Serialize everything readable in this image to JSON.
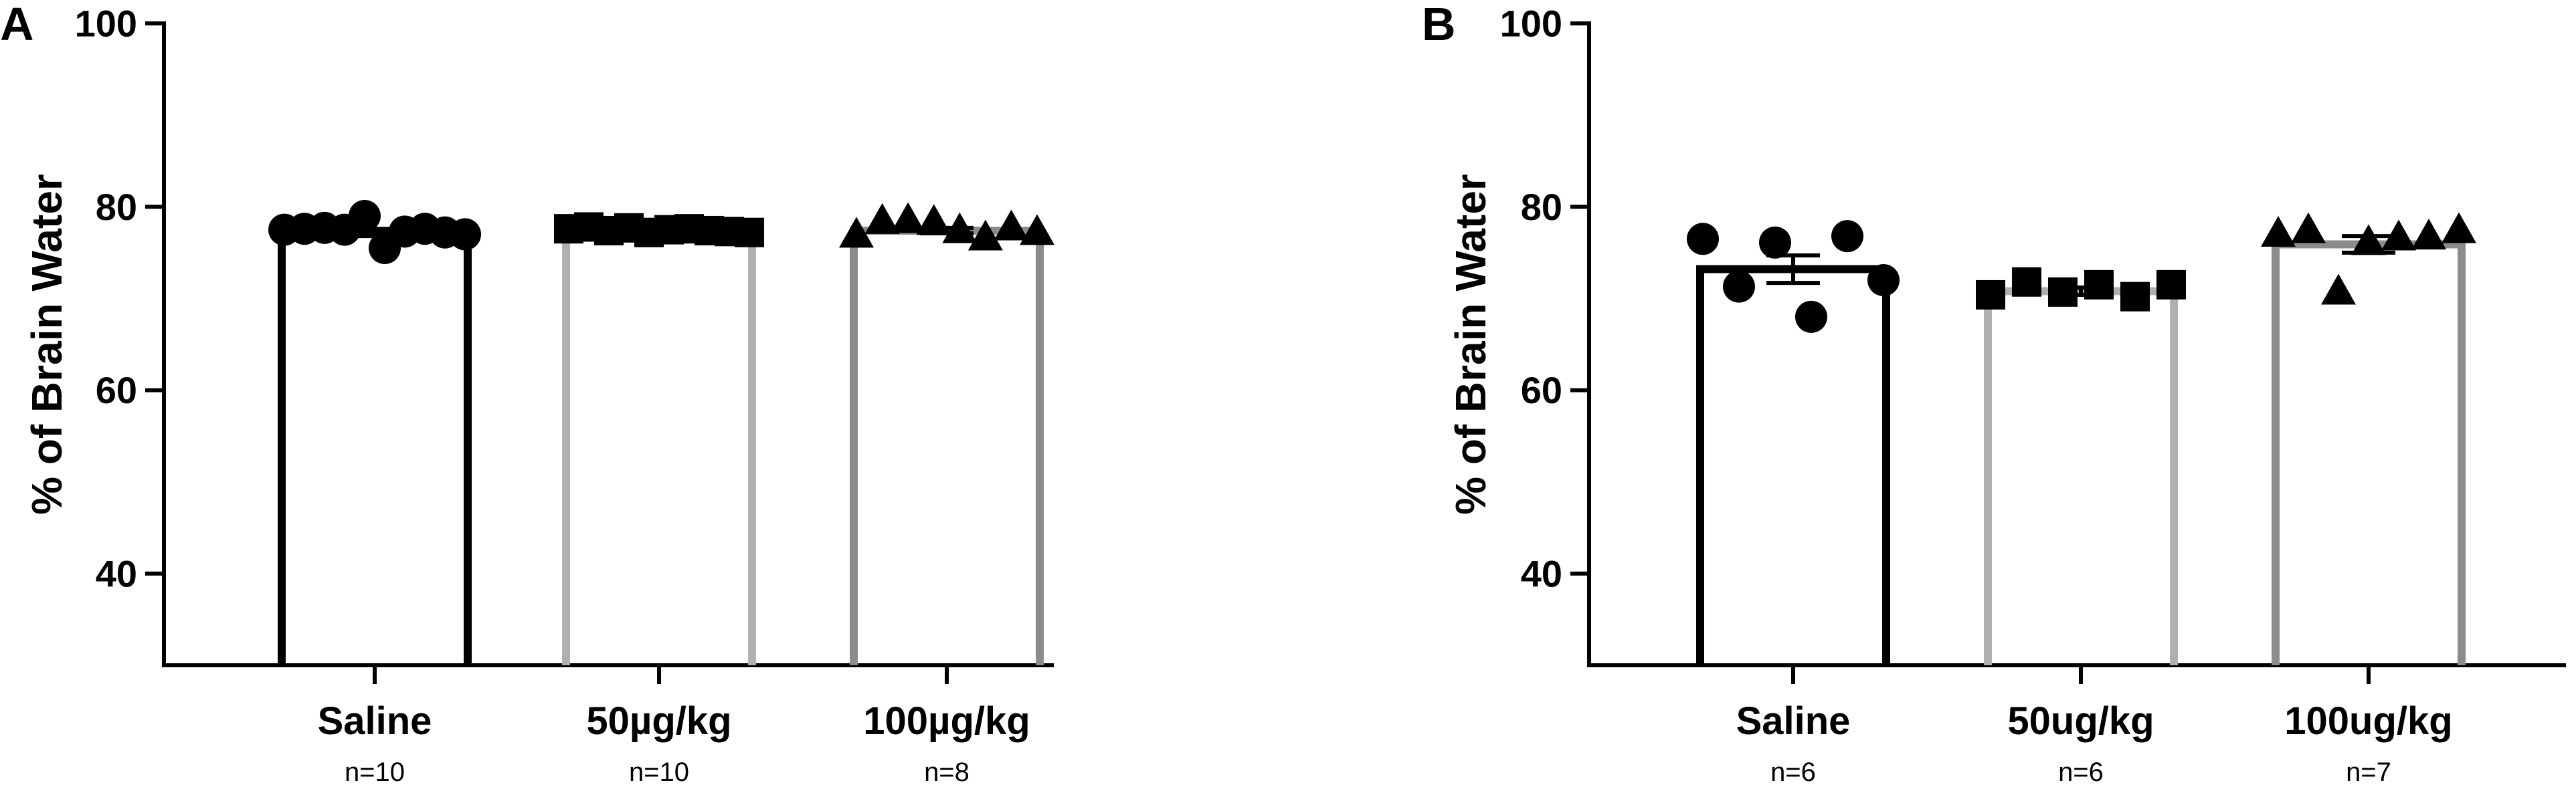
{
  "chart_data": [
    {
      "panel": "A",
      "type": "bar",
      "ylabel": "% of Brain Water",
      "ylim": [
        30,
        100
      ],
      "yticks": [
        40,
        60,
        80,
        100
      ],
      "categories": [
        "Saline",
        "50µg/kg",
        "100µg/kg"
      ],
      "n_labels": [
        "n=10",
        "n=10",
        "n=8"
      ],
      "bar_colors": [
        "#000000",
        "#b0b0b0",
        "#8c8c8c"
      ],
      "markers": [
        "circle",
        "square",
        "triangle"
      ],
      "values": [
        77.2,
        77.3,
        77.4
      ],
      "sem": [
        0.4,
        0.2,
        0.3
      ],
      "points": [
        [
          77.5,
          77.6,
          77.7,
          77.5,
          79.0,
          75.5,
          77.3,
          77.6,
          77.2,
          77.0
        ],
        [
          77.6,
          77.8,
          77.4,
          77.7,
          77.2,
          77.5,
          77.6,
          77.4,
          77.3,
          77.2
        ],
        [
          77.0,
          78.5,
          78.6,
          78.4,
          77.5,
          76.7,
          77.8,
          77.3
        ]
      ]
    },
    {
      "panel": "B",
      "type": "bar",
      "ylabel": "% of Brain Water",
      "ylim": [
        30,
        100
      ],
      "yticks": [
        40,
        60,
        80,
        100
      ],
      "categories": [
        "Saline",
        "50ug/kg",
        "100ug/kg"
      ],
      "n_labels": [
        "n=6",
        "n=6",
        "n=7"
      ],
      "bar_colors": [
        "#000000",
        "#b0b0b0",
        "#8c8c8c"
      ],
      "markers": [
        "circle",
        "square",
        "triangle"
      ],
      "values": [
        73.2,
        70.8,
        75.9
      ],
      "sem": [
        1.5,
        0.4,
        0.9
      ],
      "points": [
        [
          76.5,
          71.3,
          76.1,
          68.0,
          76.8,
          72.0
        ],
        [
          70.4,
          71.8,
          70.7,
          71.5,
          70.2,
          71.5
        ],
        [
          77.1,
          77.5,
          70.8,
          76.2,
          76.7,
          76.8,
          77.5
        ]
      ]
    }
  ]
}
